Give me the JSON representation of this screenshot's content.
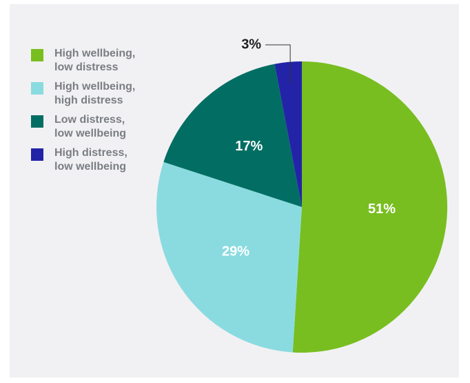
{
  "chart_data": {
    "type": "pie",
    "title": "",
    "legend_position": "left",
    "slices": [
      {
        "name_lines": [
          "High wellbeing,",
          "low distress"
        ],
        "value": 51,
        "label": "51%",
        "color": "#78be20"
      },
      {
        "name_lines": [
          "High wellbeing,",
          "high distress"
        ],
        "value": 29,
        "label": "29%",
        "color": "#8adbe0"
      },
      {
        "name_lines": [
          "Low distress,",
          "low wellbeing"
        ],
        "value": 17,
        "label": "17%",
        "color": "#026e63"
      },
      {
        "name_lines": [
          "High distress,",
          "low wellbeing"
        ],
        "value": 3,
        "label": "3%",
        "color": "#2323a8"
      }
    ]
  }
}
